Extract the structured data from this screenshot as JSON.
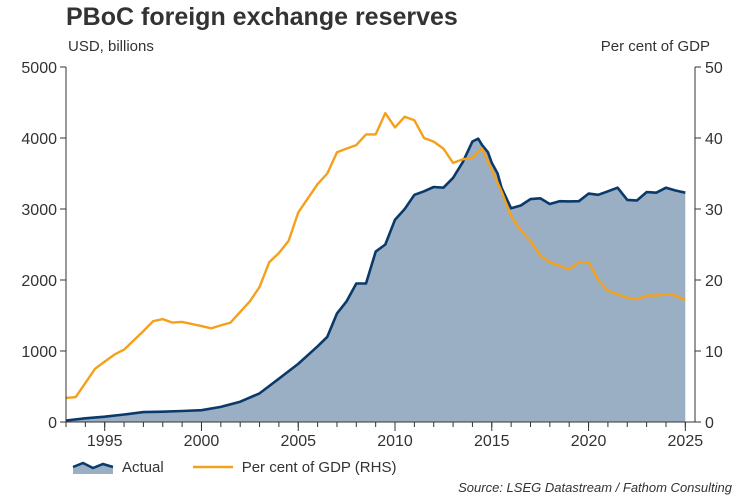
{
  "title": "PBoC foreign exchange reserves",
  "unit_left": "USD, billions",
  "unit_right": "Per cent of GDP",
  "source": "Source: LSEG Datastream / Fathom Consulting",
  "colors": {
    "area_fill": "#9aafc4",
    "actual_line": "#0a3a6b",
    "gdp_line": "#f5a01a",
    "axis": "#333333"
  },
  "chart_data": {
    "type": "area",
    "title": "PBoC foreign exchange reserves",
    "xlim": [
      1993,
      2025.5
    ],
    "x_ticks": [
      "1995",
      "2000",
      "2005",
      "2010",
      "2015",
      "2020",
      "2025"
    ],
    "ylim_left": [
      0,
      5000
    ],
    "y_ticks_left": [
      "0",
      "1000",
      "2000",
      "3000",
      "4000",
      "5000"
    ],
    "ylim_right": [
      0,
      50
    ],
    "y_ticks_right": [
      "0",
      "10",
      "20",
      "30",
      "40",
      "50"
    ],
    "grid": false,
    "legend_position": "bottom",
    "series": [
      {
        "name": "Actual",
        "axis": "left",
        "style": "area-with-line",
        "x": [
          1993,
          1994,
          1995,
          1996,
          1997,
          1998,
          1999,
          2000,
          2001,
          2002,
          2003,
          2004,
          2005,
          2006,
          2006.5,
          2007,
          2007.5,
          2008,
          2008.5,
          2009,
          2009.5,
          2010,
          2010.5,
          2011,
          2011.5,
          2012,
          2012.5,
          2013,
          2013.5,
          2014,
          2014.3,
          2014.5,
          2014.8,
          2015,
          2015.3,
          2015.5,
          2016,
          2016.5,
          2017,
          2017.5,
          2018,
          2018.5,
          2019,
          2019.5,
          2020,
          2020.5,
          2021,
          2021.5,
          2022,
          2022.5,
          2023,
          2023.5,
          2024,
          2024.5,
          2025
        ],
        "values": [
          21,
          52,
          74,
          105,
          140,
          145,
          155,
          166,
          212,
          286,
          403,
          610,
          819,
          1066,
          1200,
          1530,
          1700,
          1950,
          1950,
          2400,
          2500,
          2850,
          3000,
          3200,
          3250,
          3310,
          3300,
          3440,
          3660,
          3950,
          3990,
          3900,
          3800,
          3650,
          3500,
          3300,
          3010,
          3050,
          3140,
          3150,
          3070,
          3110,
          3107,
          3110,
          3217,
          3200,
          3250,
          3300,
          3128,
          3120,
          3238,
          3230,
          3300,
          3260,
          3230
        ]
      },
      {
        "name": "Per cent of GDP (RHS)",
        "axis": "right",
        "style": "line",
        "x": [
          1993,
          1993.5,
          1994,
          1994.5,
          1995,
          1995.5,
          1996,
          1996.5,
          1997,
          1997.5,
          1998,
          1998.5,
          1999,
          1999.5,
          2000,
          2000.5,
          2001,
          2001.5,
          2002,
          2002.5,
          2003,
          2003.5,
          2004,
          2004.5,
          2005,
          2005.5,
          2006,
          2006.5,
          2007,
          2007.5,
          2008,
          2008.5,
          2009,
          2009.5,
          2010,
          2010.5,
          2011,
          2011.5,
          2012,
          2012.5,
          2013,
          2013.5,
          2014,
          2014.5,
          2015,
          2015.5,
          2016,
          2016.5,
          2017,
          2017.5,
          2018,
          2018.5,
          2019,
          2019.5,
          2020,
          2020.5,
          2021,
          2021.5,
          2022,
          2022.5,
          2023,
          2023.5,
          2024,
          2024.5,
          2025
        ],
        "values": [
          3.4,
          3.5,
          5.5,
          7.5,
          8.5,
          9.5,
          10.2,
          11.5,
          12.8,
          14.2,
          14.5,
          14.0,
          14.1,
          13.8,
          13.5,
          13.2,
          13.6,
          14.0,
          15.5,
          17.0,
          19.0,
          22.5,
          23.8,
          25.5,
          29.5,
          31.5,
          33.5,
          35.0,
          38.0,
          38.5,
          39.0,
          40.5,
          40.5,
          43.5,
          41.5,
          43.0,
          42.5,
          40.0,
          39.5,
          38.5,
          36.5,
          37.0,
          37.2,
          38.5,
          35.5,
          32.5,
          29.0,
          27.0,
          25.5,
          23.5,
          22.5,
          22.0,
          21.5,
          22.5,
          22.5,
          20.0,
          18.5,
          18.0,
          17.5,
          17.3,
          17.8,
          17.8,
          18.0,
          17.8,
          17.2
        ]
      }
    ]
  }
}
